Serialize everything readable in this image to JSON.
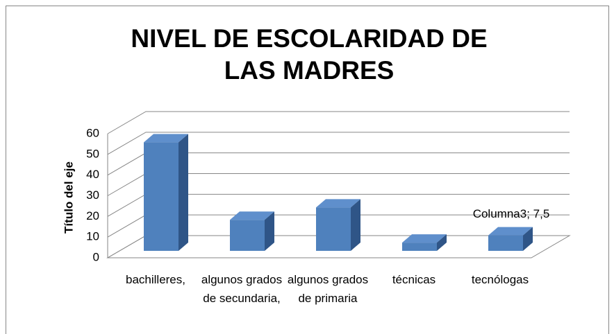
{
  "chart_data": {
    "type": "bar3d",
    "title": "NIVEL DE ESCOLARIDAD DE LAS MADRES",
    "y_label": "Título del eje",
    "categories": [
      "bachilleres,",
      "algunos grados de secundaria,",
      "algunos grados de primaria",
      "técnicas",
      "tecnólogas"
    ],
    "values": [
      52.5,
      15,
      21,
      4,
      7.5
    ],
    "value_labels": [
      null,
      null,
      null,
      null,
      "Columna3; 7,5"
    ],
    "color": "#4f81bd",
    "ylim": [
      0,
      60
    ],
    "yticks": [
      0,
      10,
      20,
      30,
      40,
      50,
      60
    ],
    "grid": true
  }
}
